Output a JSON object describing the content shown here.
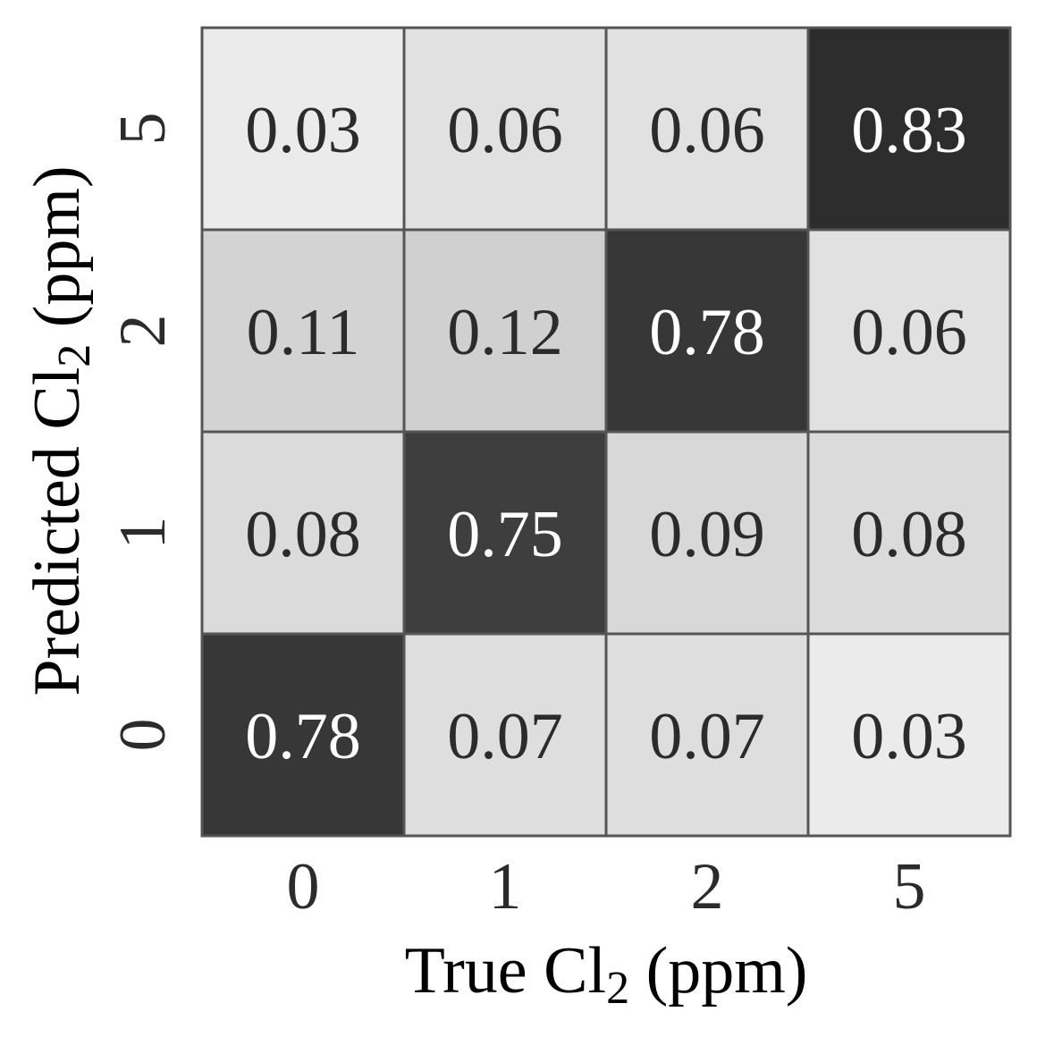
{
  "chart_data": {
    "type": "heatmap",
    "title": "",
    "xlabel": "True Cl",
    "xlabel_subscript": "2",
    "xlabel_suffix": " (ppm)",
    "ylabel": "Predicted Cl",
    "ylabel_subscript": "2",
    "ylabel_suffix": " (ppm)",
    "x_categories": [
      "0",
      "1",
      "2",
      "5"
    ],
    "y_categories": [
      "0",
      "1",
      "2",
      "5"
    ],
    "y_order": "bottom-to-top",
    "values": [
      [
        0.78,
        0.07,
        0.07,
        0.03
      ],
      [
        0.08,
        0.75,
        0.09,
        0.08
      ],
      [
        0.11,
        0.12,
        0.78,
        0.06
      ],
      [
        0.03,
        0.06,
        0.06,
        0.83
      ]
    ],
    "value_labels": [
      [
        "0.78",
        "0.07",
        "0.07",
        "0.03"
      ],
      [
        "0.08",
        "0.75",
        "0.09",
        "0.08"
      ],
      [
        "0.11",
        "0.12",
        "0.78",
        "0.06"
      ],
      [
        "0.03",
        "0.06",
        "0.06",
        "0.83"
      ]
    ],
    "colormap": "greys",
    "color_low": "#f7f7f7",
    "color_high": "#2d2d2d",
    "grid_color": "#555555",
    "text_dark": "#2b2b2b",
    "text_light": "#ffffff",
    "colorbar": false
  }
}
